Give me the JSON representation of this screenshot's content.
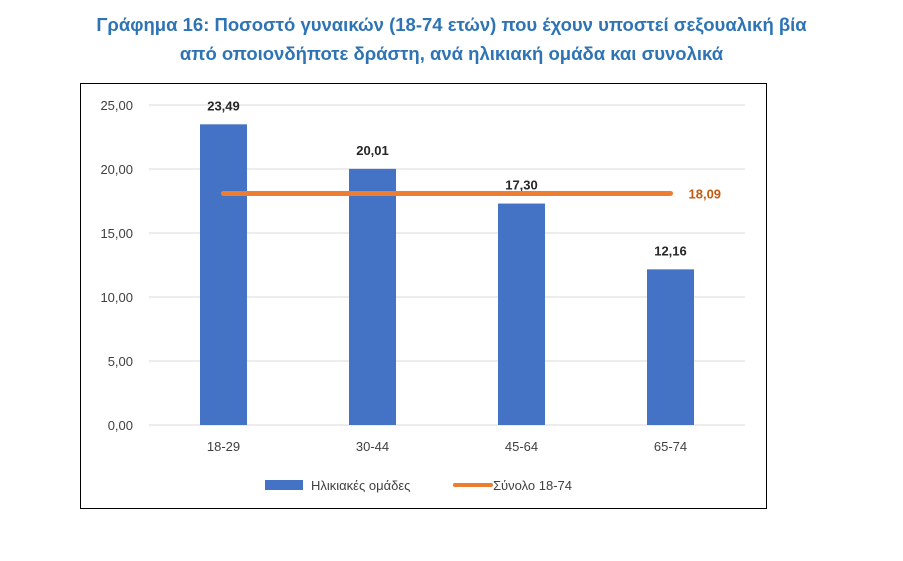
{
  "title": {
    "line1": "Γράφημα 16: Ποσοστό γυναικών (18-74 ετών) που έχουν υποστεί σεξουαλική βία",
    "line2": "από οποιονδήποτε δράστη, ανά ηλικιακή ομάδα και συνολικά"
  },
  "chart_data": {
    "type": "bar",
    "categories": [
      "18-29",
      "30-44",
      "45-64",
      "65-74"
    ],
    "series": [
      {
        "name": "Ηλικιακές ομάδες",
        "type": "bar",
        "values": [
          23.49,
          20.01,
          17.3,
          12.16
        ],
        "labels": [
          "23,49",
          "20,01",
          "17,30",
          "12,16"
        ],
        "color": "#4472C4"
      },
      {
        "name": "Σύνολο 18-74",
        "type": "line",
        "values": [
          18.09,
          18.09,
          18.09,
          18.09
        ],
        "end_label": "18,09",
        "color": "#ED7D31"
      }
    ],
    "ylim": [
      0,
      25
    ],
    "yticks": [
      "0,00",
      "5,00",
      "10,00",
      "15,00",
      "20,00",
      "25,00"
    ],
    "grid": true,
    "legend": "bottom"
  }
}
